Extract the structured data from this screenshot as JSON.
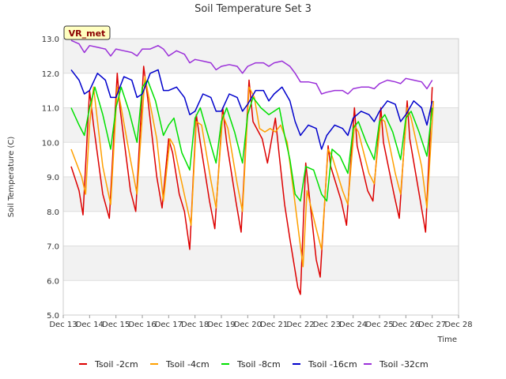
{
  "chart_data": {
    "type": "line",
    "title": "Soil Temperature Set 3",
    "xlabel": "Time",
    "ylabel": "Soil Temperature (C)",
    "badge": "VR_met",
    "xlim": [
      13,
      28
    ],
    "ylim": [
      5.0,
      13.0
    ],
    "x_ticks": [
      "Dec 13",
      "Dec 14",
      "Dec 15",
      "Dec 16",
      "Dec 17",
      "Dec 18",
      "Dec 19",
      "Dec 20",
      "Dec 21",
      "Dec 22",
      "Dec 23",
      "Dec 24",
      "Dec 25",
      "Dec 26",
      "Dec 27",
      "Dec 28"
    ],
    "y_ticks": [
      "5.0",
      "6.0",
      "7.0",
      "8.0",
      "9.0",
      "10.0",
      "11.0",
      "12.0",
      "13.0"
    ],
    "band_shading": true,
    "legend_position": "bottom",
    "series": [
      {
        "name": "Tsoil -2cm",
        "color": "#dd0000",
        "x": [
          13.3,
          13.6,
          13.75,
          14.0,
          14.15,
          14.5,
          14.75,
          15.05,
          15.15,
          15.55,
          15.75,
          16.05,
          16.2,
          16.55,
          16.75,
          17.0,
          17.15,
          17.4,
          17.6,
          17.8,
          18.05,
          18.2,
          18.55,
          18.75,
          19.05,
          19.2,
          19.55,
          19.75,
          20.05,
          20.2,
          20.55,
          20.75,
          21.05,
          21.2,
          21.4,
          21.6,
          21.9,
          22.0,
          22.2,
          22.6,
          22.75,
          23.05,
          23.15,
          23.55,
          23.75,
          24.05,
          24.15,
          24.55,
          24.75,
          25.05,
          25.15,
          25.55,
          25.75,
          26.05,
          26.15,
          26.55,
          26.75,
          27.0
        ],
        "y": [
          9.3,
          8.6,
          7.9,
          11.5,
          10.5,
          8.5,
          7.8,
          12.0,
          11.0,
          8.6,
          8.0,
          12.2,
          11.3,
          9.0,
          8.1,
          10.1,
          9.7,
          8.5,
          8.0,
          6.9,
          10.8,
          10.0,
          8.3,
          7.5,
          11.0,
          10.0,
          8.3,
          7.4,
          11.8,
          10.6,
          10.1,
          9.4,
          10.7,
          9.6,
          8.2,
          7.2,
          5.8,
          5.6,
          9.4,
          6.6,
          6.1,
          9.9,
          9.3,
          8.3,
          7.6,
          11.0,
          9.9,
          8.6,
          8.3,
          11.0,
          10.0,
          8.5,
          7.8,
          11.2,
          10.1,
          8.3,
          7.4,
          11.6
        ]
      },
      {
        "name": "Tsoil -4cm",
        "color": "#ffa000",
        "x": [
          13.3,
          13.7,
          13.85,
          14.0,
          14.15,
          14.5,
          14.8,
          15.05,
          15.2,
          15.55,
          15.8,
          16.1,
          16.25,
          16.55,
          16.8,
          17.05,
          17.2,
          17.45,
          17.65,
          17.85,
          18.05,
          18.25,
          18.6,
          18.8,
          19.05,
          19.25,
          19.6,
          19.8,
          20.05,
          20.25,
          20.45,
          20.65,
          20.85,
          21.05,
          21.25,
          21.5,
          21.75,
          21.95,
          22.1,
          22.25,
          22.6,
          22.8,
          23.05,
          23.2,
          23.6,
          23.8,
          24.05,
          24.2,
          24.6,
          24.8,
          25.05,
          25.2,
          25.6,
          25.8,
          26.05,
          26.2,
          26.6,
          26.8,
          27.05
        ],
        "y": [
          9.8,
          9.0,
          8.5,
          10.5,
          11.6,
          9.3,
          8.2,
          11.6,
          11.0,
          9.5,
          8.5,
          11.9,
          11.3,
          10.1,
          8.3,
          10.1,
          9.9,
          9.0,
          8.3,
          7.6,
          10.6,
          10.5,
          8.9,
          8.1,
          10.8,
          10.4,
          8.8,
          8.0,
          11.6,
          11.3,
          10.4,
          10.3,
          10.4,
          10.3,
          10.5,
          10.0,
          8.5,
          7.3,
          6.4,
          8.6,
          7.5,
          6.9,
          9.8,
          9.6,
          8.6,
          8.2,
          10.5,
          10.3,
          9.1,
          8.8,
          10.7,
          10.6,
          9.1,
          8.5,
          11.0,
          10.7,
          9.3,
          8.1,
          11.2
        ]
      },
      {
        "name": "Tsoil -8cm",
        "color": "#00e000",
        "x": [
          13.3,
          13.6,
          13.8,
          14.0,
          14.2,
          14.5,
          14.8,
          15.0,
          15.2,
          15.5,
          15.8,
          16.0,
          16.2,
          16.5,
          16.8,
          17.0,
          17.2,
          17.5,
          17.8,
          18.0,
          18.2,
          18.5,
          18.8,
          19.0,
          19.2,
          19.5,
          19.8,
          20.0,
          20.2,
          20.5,
          20.8,
          21.0,
          21.2,
          21.4,
          21.6,
          21.8,
          22.0,
          22.2,
          22.5,
          22.8,
          23.0,
          23.2,
          23.5,
          23.8,
          24.0,
          24.2,
          24.5,
          24.8,
          25.0,
          25.2,
          25.5,
          25.8,
          26.0,
          26.2,
          26.5,
          26.8,
          27.0
        ],
        "y": [
          11.0,
          10.5,
          10.2,
          11.0,
          11.6,
          10.8,
          9.8,
          11.0,
          11.6,
          10.9,
          10.0,
          11.6,
          11.8,
          11.2,
          10.2,
          10.5,
          10.7,
          9.7,
          9.2,
          10.7,
          11.0,
          10.2,
          9.4,
          10.6,
          11.0,
          10.3,
          9.4,
          10.8,
          11.3,
          11.0,
          10.8,
          10.9,
          11.0,
          10.2,
          9.5,
          8.5,
          8.3,
          9.3,
          9.2,
          8.5,
          8.3,
          9.8,
          9.6,
          9.1,
          10.4,
          10.6,
          10.0,
          9.5,
          10.6,
          10.8,
          10.3,
          9.5,
          10.7,
          10.9,
          10.3,
          9.6,
          11.0
        ]
      },
      {
        "name": "Tsoil -16cm",
        "color": "#0000cc",
        "x": [
          13.3,
          13.6,
          13.8,
          14.0,
          14.3,
          14.6,
          14.8,
          15.0,
          15.3,
          15.6,
          15.8,
          16.0,
          16.3,
          16.6,
          16.8,
          17.0,
          17.3,
          17.6,
          17.8,
          18.0,
          18.3,
          18.6,
          18.8,
          19.0,
          19.3,
          19.6,
          19.8,
          20.0,
          20.3,
          20.6,
          20.8,
          21.0,
          21.3,
          21.6,
          21.8,
          22.0,
          22.3,
          22.6,
          22.8,
          23.0,
          23.3,
          23.6,
          23.8,
          24.0,
          24.3,
          24.6,
          24.8,
          25.0,
          25.3,
          25.6,
          25.8,
          26.0,
          26.3,
          26.6,
          26.8,
          27.0
        ],
        "y": [
          12.1,
          11.8,
          11.4,
          11.5,
          12.0,
          11.8,
          11.3,
          11.3,
          11.9,
          11.8,
          11.3,
          11.4,
          12.0,
          12.1,
          11.5,
          11.5,
          11.6,
          11.3,
          10.8,
          10.9,
          11.4,
          11.3,
          10.9,
          10.9,
          11.4,
          11.3,
          10.9,
          11.1,
          11.5,
          11.5,
          11.2,
          11.4,
          11.6,
          11.2,
          10.6,
          10.2,
          10.5,
          10.4,
          9.8,
          10.2,
          10.5,
          10.4,
          10.2,
          10.7,
          10.9,
          10.8,
          10.6,
          10.9,
          11.2,
          11.1,
          10.6,
          10.8,
          11.2,
          11.0,
          10.5,
          11.2
        ]
      },
      {
        "name": "Tsoil -32cm",
        "color": "#9b30d9",
        "x": [
          13.3,
          13.6,
          13.8,
          14.0,
          14.3,
          14.6,
          14.8,
          15.0,
          15.3,
          15.6,
          15.8,
          16.0,
          16.3,
          16.6,
          16.8,
          17.0,
          17.3,
          17.6,
          17.8,
          18.0,
          18.3,
          18.6,
          18.8,
          19.0,
          19.3,
          19.6,
          19.8,
          20.0,
          20.3,
          20.6,
          20.8,
          21.0,
          21.3,
          21.6,
          21.8,
          22.0,
          22.3,
          22.6,
          22.8,
          23.0,
          23.3,
          23.6,
          23.8,
          24.0,
          24.3,
          24.6,
          24.8,
          25.0,
          25.3,
          25.6,
          25.8,
          26.0,
          26.3,
          26.6,
          26.8,
          27.0
        ],
        "y": [
          12.95,
          12.85,
          12.6,
          12.8,
          12.75,
          12.7,
          12.5,
          12.7,
          12.65,
          12.6,
          12.5,
          12.7,
          12.7,
          12.8,
          12.7,
          12.5,
          12.65,
          12.55,
          12.3,
          12.4,
          12.35,
          12.3,
          12.1,
          12.2,
          12.25,
          12.2,
          12.0,
          12.2,
          12.3,
          12.3,
          12.2,
          12.3,
          12.35,
          12.2,
          12.0,
          11.75,
          11.75,
          11.7,
          11.4,
          11.45,
          11.5,
          11.5,
          11.4,
          11.55,
          11.6,
          11.6,
          11.55,
          11.7,
          11.8,
          11.75,
          11.7,
          11.85,
          11.8,
          11.75,
          11.55,
          11.8
        ]
      }
    ]
  }
}
